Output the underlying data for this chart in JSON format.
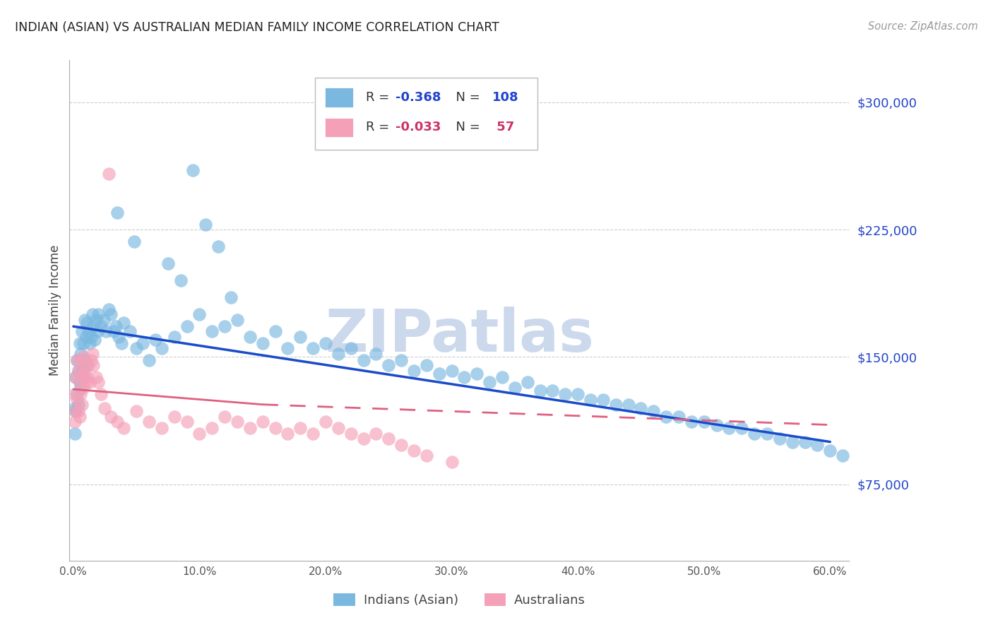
{
  "title": "INDIAN (ASIAN) VS AUSTRALIAN MEDIAN FAMILY INCOME CORRELATION CHART",
  "source": "Source: ZipAtlas.com",
  "ylabel": "Median Family Income",
  "xlim": [
    -0.003,
    0.615
  ],
  "ylim": [
    30000,
    325000
  ],
  "yticks": [
    75000,
    150000,
    225000,
    300000
  ],
  "ytick_labels": [
    "$75,000",
    "$150,000",
    "$225,000",
    "$300,000"
  ],
  "xticks": [
    0.0,
    0.1,
    0.2,
    0.3,
    0.4,
    0.5,
    0.6
  ],
  "xtick_labels": [
    "0.0%",
    "10.0%",
    "20.0%",
    "30.0%",
    "40.0%",
    "50.0%",
    "60.0%"
  ],
  "blue_color": "#7ab8e0",
  "pink_color": "#f4a0b8",
  "blue_line_color": "#1a4bc9",
  "pink_line_color": "#e06080",
  "grid_color": "#cccccc",
  "watermark_color": "#ccd9ec",
  "legend_label1": "Indians (Asian)",
  "legend_label2": "Australians",
  "legend_R1": "-0.368",
  "legend_N1": "108",
  "legend_R2": "-0.033",
  "legend_N2": " 57",
  "blue_line_x0": 0.0,
  "blue_line_x1": 0.6,
  "blue_line_y0": 168000,
  "blue_line_y1": 100000,
  "pink_line_x0": 0.0,
  "pink_line_x1": 0.15,
  "pink_line_x1b": 0.15,
  "pink_line_x2": 0.6,
  "pink_line_y0": 131000,
  "pink_line_y1": 122000,
  "pink_line_y2": 110000,
  "blue_x": [
    0.001,
    0.001,
    0.002,
    0.002,
    0.003,
    0.003,
    0.004,
    0.004,
    0.005,
    0.005,
    0.006,
    0.006,
    0.007,
    0.007,
    0.008,
    0.008,
    0.009,
    0.009,
    0.01,
    0.01,
    0.011,
    0.012,
    0.013,
    0.014,
    0.015,
    0.016,
    0.017,
    0.018,
    0.019,
    0.02,
    0.022,
    0.024,
    0.026,
    0.028,
    0.03,
    0.032,
    0.034,
    0.036,
    0.038,
    0.04,
    0.045,
    0.05,
    0.055,
    0.06,
    0.065,
    0.07,
    0.08,
    0.09,
    0.1,
    0.11,
    0.12,
    0.13,
    0.14,
    0.15,
    0.16,
    0.17,
    0.18,
    0.19,
    0.2,
    0.21,
    0.22,
    0.23,
    0.24,
    0.25,
    0.26,
    0.27,
    0.28,
    0.29,
    0.3,
    0.31,
    0.32,
    0.33,
    0.34,
    0.35,
    0.36,
    0.37,
    0.38,
    0.39,
    0.4,
    0.41,
    0.42,
    0.43,
    0.44,
    0.45,
    0.46,
    0.47,
    0.48,
    0.49,
    0.5,
    0.51,
    0.52,
    0.53,
    0.54,
    0.55,
    0.56,
    0.57,
    0.58,
    0.59,
    0.6,
    0.61,
    0.035,
    0.048,
    0.075,
    0.085,
    0.095,
    0.105,
    0.115,
    0.125
  ],
  "blue_y": [
    120000,
    105000,
    138000,
    118000,
    148000,
    128000,
    142000,
    122000,
    158000,
    135000,
    152000,
    132000,
    165000,
    142000,
    158000,
    138000,
    172000,
    148000,
    162000,
    145000,
    170000,
    165000,
    158000,
    162000,
    175000,
    168000,
    160000,
    172000,
    165000,
    175000,
    168000,
    172000,
    165000,
    178000,
    175000,
    165000,
    168000,
    162000,
    158000,
    170000,
    165000,
    155000,
    158000,
    148000,
    160000,
    155000,
    162000,
    168000,
    175000,
    165000,
    168000,
    172000,
    162000,
    158000,
    165000,
    155000,
    162000,
    155000,
    158000,
    152000,
    155000,
    148000,
    152000,
    145000,
    148000,
    142000,
    145000,
    140000,
    142000,
    138000,
    140000,
    135000,
    138000,
    132000,
    135000,
    130000,
    130000,
    128000,
    128000,
    125000,
    125000,
    122000,
    122000,
    120000,
    118000,
    115000,
    115000,
    112000,
    112000,
    110000,
    108000,
    108000,
    105000,
    105000,
    102000,
    100000,
    100000,
    98000,
    95000,
    92000,
    235000,
    218000,
    205000,
    195000,
    260000,
    228000,
    215000,
    185000
  ],
  "blue_size": [
    120,
    120,
    120,
    120,
    120,
    120,
    120,
    120,
    120,
    120,
    120,
    120,
    120,
    120,
    120,
    120,
    120,
    120,
    120,
    120,
    120,
    120,
    120,
    120,
    120,
    120,
    120,
    120,
    120,
    120,
    120,
    120,
    120,
    120,
    120,
    120,
    120,
    120,
    120,
    120,
    120,
    120,
    120,
    120,
    120,
    120,
    120,
    120,
    120,
    120,
    120,
    120,
    120,
    120,
    120,
    120,
    120,
    120,
    120,
    120,
    120,
    120,
    120,
    120,
    120,
    120,
    120,
    120,
    120,
    120,
    120,
    120,
    120,
    120,
    120,
    120,
    120,
    120,
    120,
    120,
    120,
    120,
    120,
    120,
    120,
    120,
    120,
    120,
    120,
    120,
    120,
    120,
    120,
    120,
    120,
    120,
    120,
    120,
    120,
    120,
    120,
    120,
    120,
    120,
    120,
    120,
    120,
    120
  ],
  "pink_x": [
    0.001,
    0.001,
    0.002,
    0.002,
    0.003,
    0.003,
    0.004,
    0.004,
    0.005,
    0.005,
    0.006,
    0.006,
    0.007,
    0.007,
    0.008,
    0.008,
    0.009,
    0.01,
    0.011,
    0.012,
    0.013,
    0.014,
    0.015,
    0.016,
    0.018,
    0.02,
    0.022,
    0.025,
    0.03,
    0.035,
    0.04,
    0.05,
    0.06,
    0.07,
    0.08,
    0.09,
    0.1,
    0.11,
    0.12,
    0.13,
    0.14,
    0.15,
    0.16,
    0.17,
    0.18,
    0.19,
    0.2,
    0.21,
    0.22,
    0.23,
    0.24,
    0.25,
    0.26,
    0.27,
    0.28,
    0.3,
    0.028
  ],
  "pink_y": [
    128000,
    112000,
    138000,
    118000,
    148000,
    125000,
    142000,
    118000,
    135000,
    115000,
    148000,
    128000,
    140000,
    122000,
    150000,
    132000,
    142000,
    135000,
    138000,
    145000,
    135000,
    148000,
    152000,
    145000,
    138000,
    135000,
    128000,
    120000,
    115000,
    112000,
    108000,
    118000,
    112000,
    108000,
    115000,
    112000,
    105000,
    108000,
    115000,
    112000,
    108000,
    112000,
    108000,
    105000,
    108000,
    105000,
    112000,
    108000,
    105000,
    102000,
    105000,
    102000,
    98000,
    95000,
    92000,
    88000,
    258000
  ]
}
